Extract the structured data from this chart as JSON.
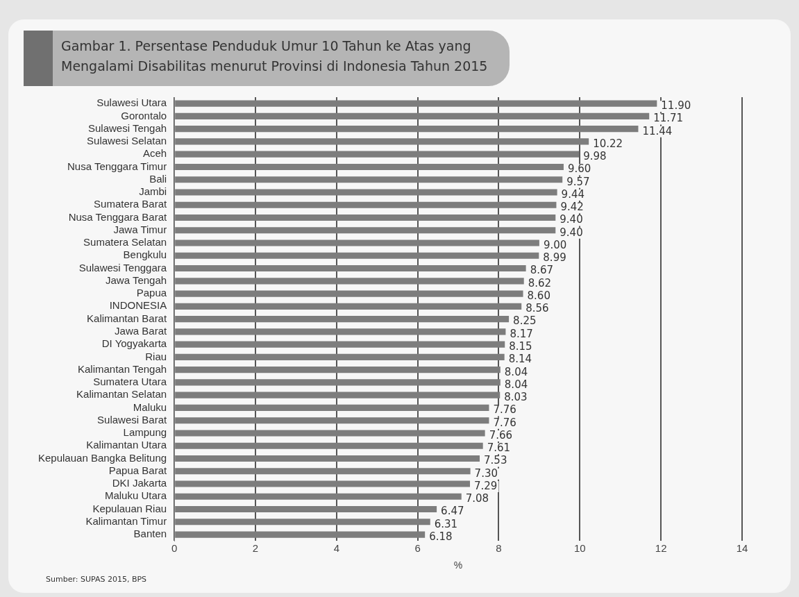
{
  "chart_data": {
    "type": "bar",
    "orientation": "horizontal",
    "title": "Gambar 1. Persentase Penduduk Umur 10 Tahun ke Atas yang Mengalami Disabilitas menurut Provinsi di Indonesia Tahun 2015",
    "xlabel": "%",
    "categories": [
      "Sulawesi Utara",
      "Gorontalo",
      "Sulawesi Tengah",
      "Sulawesi Selatan",
      "Aceh",
      "Nusa Tenggara Timur",
      "Bali",
      "Jambi",
      "Sumatera Barat",
      "Nusa Tenggara Barat",
      "Jawa Timur",
      "Sumatera Selatan",
      "Bengkulu",
      "Sulawesi Tenggara",
      "Jawa Tengah",
      "Papua",
      "INDONESIA",
      "Kalimantan Barat",
      "Jawa Barat",
      "DI Yogyakarta",
      "Riau",
      "Kalimantan Tengah",
      "Sumatera Utara",
      "Kalimantan Selatan",
      "Maluku",
      "Sulawesi Barat",
      "Lampung",
      "Kalimantan Utara",
      "Kepulauan Bangka Belitung",
      "Papua Barat",
      "DKI Jakarta",
      "Maluku Utara",
      "Kepulauan Riau",
      "Kalimantan Timur",
      "Banten"
    ],
    "values": [
      11.9,
      11.71,
      11.44,
      10.22,
      9.98,
      9.6,
      9.57,
      9.44,
      9.42,
      9.4,
      9.4,
      9.0,
      8.99,
      8.67,
      8.62,
      8.6,
      8.56,
      8.25,
      8.17,
      8.15,
      8.14,
      8.04,
      8.04,
      8.03,
      7.76,
      7.76,
      7.66,
      7.61,
      7.53,
      7.3,
      7.29,
      7.08,
      6.47,
      6.31,
      6.18
    ],
    "value_labels": [
      "11.90",
      "11.71",
      "11.44",
      "10.22",
      "9.98",
      "9.60",
      "9.57",
      "9.44",
      "9.42",
      "9.40",
      "9.40",
      "9.00",
      "8.99",
      "8.67",
      "8.62",
      "8.60",
      "8.56",
      "8.25",
      "8.17",
      "8.15",
      "8.14",
      "8.04",
      "8.04",
      "8.03",
      "7.76",
      "7.76",
      "7.66",
      "7.61",
      "7.53",
      "7.30",
      "7.29",
      "7.08",
      "6.47",
      "6.31",
      "6.18"
    ],
    "color": "#7d7d7d",
    "xlim": [
      0,
      14
    ],
    "xticks": [
      0,
      2,
      4,
      6,
      8,
      10,
      12,
      14
    ],
    "grid": "x",
    "legend": false,
    "annotations": [
      "Sumber: SUPAS 2015, BPS"
    ]
  }
}
